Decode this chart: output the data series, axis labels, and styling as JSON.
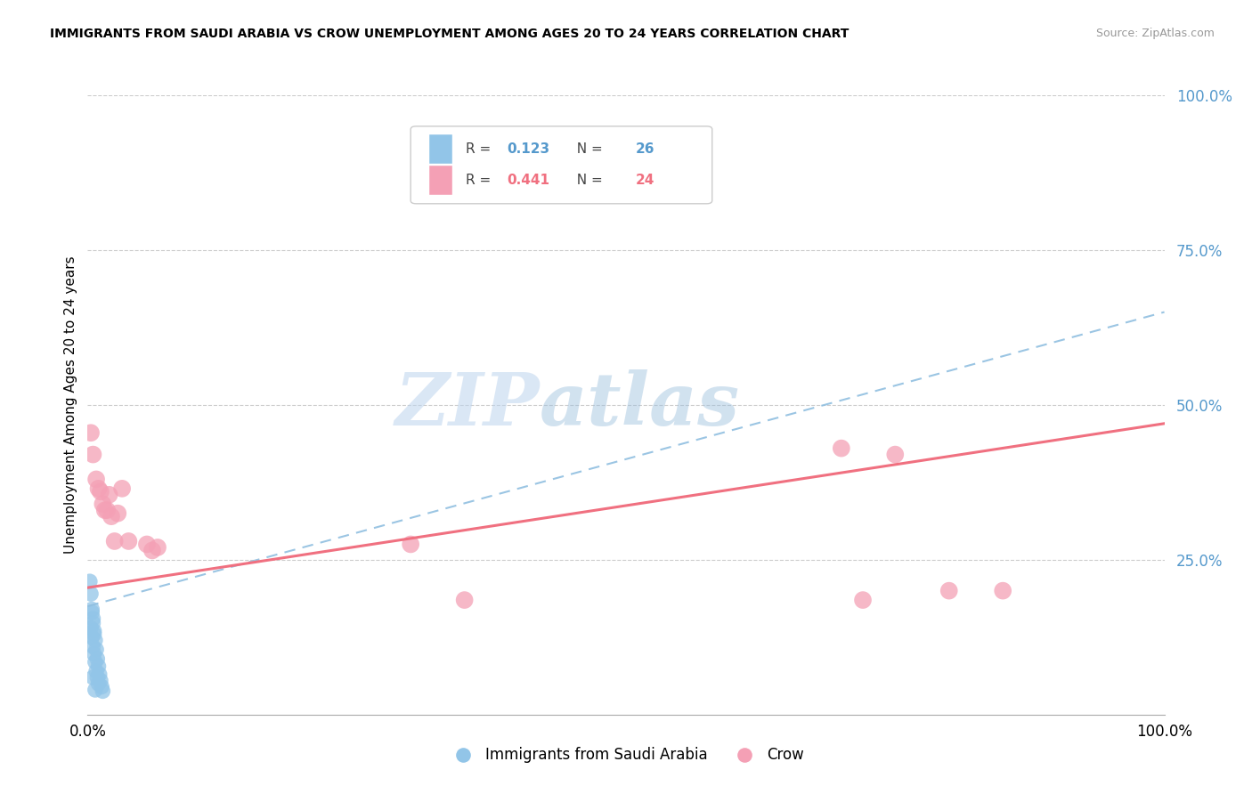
{
  "title": "IMMIGRANTS FROM SAUDI ARABIA VS CROW UNEMPLOYMENT AMONG AGES 20 TO 24 YEARS CORRELATION CHART",
  "source": "Source: ZipAtlas.com",
  "ylabel": "Unemployment Among Ages 20 to 24 years",
  "legend_label_blue": "Immigrants from Saudi Arabia",
  "legend_label_pink": "Crow",
  "blue_color": "#92C5E8",
  "pink_color": "#F4A0B5",
  "blue_line_color": "#90BFE0",
  "pink_line_color": "#F07080",
  "blue_r_text": "0.123",
  "blue_n_text": "26",
  "pink_r_text": "0.441",
  "pink_n_text": "24",
  "r_color_blue": "#5599CC",
  "r_color_pink": "#F07080",
  "watermark_zip": "ZIP",
  "watermark_atlas": "atlas",
  "xlim": [
    0.0,
    1.0
  ],
  "ylim": [
    0.0,
    1.0
  ],
  "yticks": [
    0.0,
    0.25,
    0.5,
    0.75,
    1.0
  ],
  "ytick_labels": [
    "",
    "25.0%",
    "50.0%",
    "75.0%",
    "100.0%"
  ],
  "blue_line_x0": 0.0,
  "blue_line_y0": 0.175,
  "blue_line_x1": 1.0,
  "blue_line_y1": 0.65,
  "pink_line_x0": 0.0,
  "pink_line_y0": 0.205,
  "pink_line_x1": 1.0,
  "pink_line_y1": 0.47,
  "blue_x": [
    0.002,
    0.003,
    0.003,
    0.004,
    0.004,
    0.004,
    0.005,
    0.005,
    0.005,
    0.005,
    0.006,
    0.006,
    0.006,
    0.007,
    0.007,
    0.007,
    0.008,
    0.008,
    0.009,
    0.009,
    0.01,
    0.01,
    0.011,
    0.012,
    0.013,
    0.014
  ],
  "blue_y": [
    0.215,
    0.195,
    0.14,
    0.17,
    0.125,
    0.165,
    0.155,
    0.11,
    0.148,
    0.06,
    0.135,
    0.098,
    0.13,
    0.12,
    0.085,
    0.04,
    0.105,
    0.07,
    0.09,
    0.06,
    0.078,
    0.05,
    0.065,
    0.055,
    0.045,
    0.038
  ],
  "pink_x": [
    0.003,
    0.005,
    0.008,
    0.01,
    0.012,
    0.014,
    0.016,
    0.018,
    0.02,
    0.022,
    0.025,
    0.028,
    0.032,
    0.038,
    0.055,
    0.06,
    0.065,
    0.3,
    0.35,
    0.7,
    0.72,
    0.75,
    0.8,
    0.85
  ],
  "pink_y": [
    0.455,
    0.42,
    0.38,
    0.365,
    0.36,
    0.34,
    0.33,
    0.33,
    0.355,
    0.32,
    0.28,
    0.325,
    0.365,
    0.28,
    0.275,
    0.265,
    0.27,
    0.275,
    0.185,
    0.43,
    0.185,
    0.42,
    0.2,
    0.2
  ],
  "scatter_size_blue": 160,
  "scatter_size_pink": 200
}
